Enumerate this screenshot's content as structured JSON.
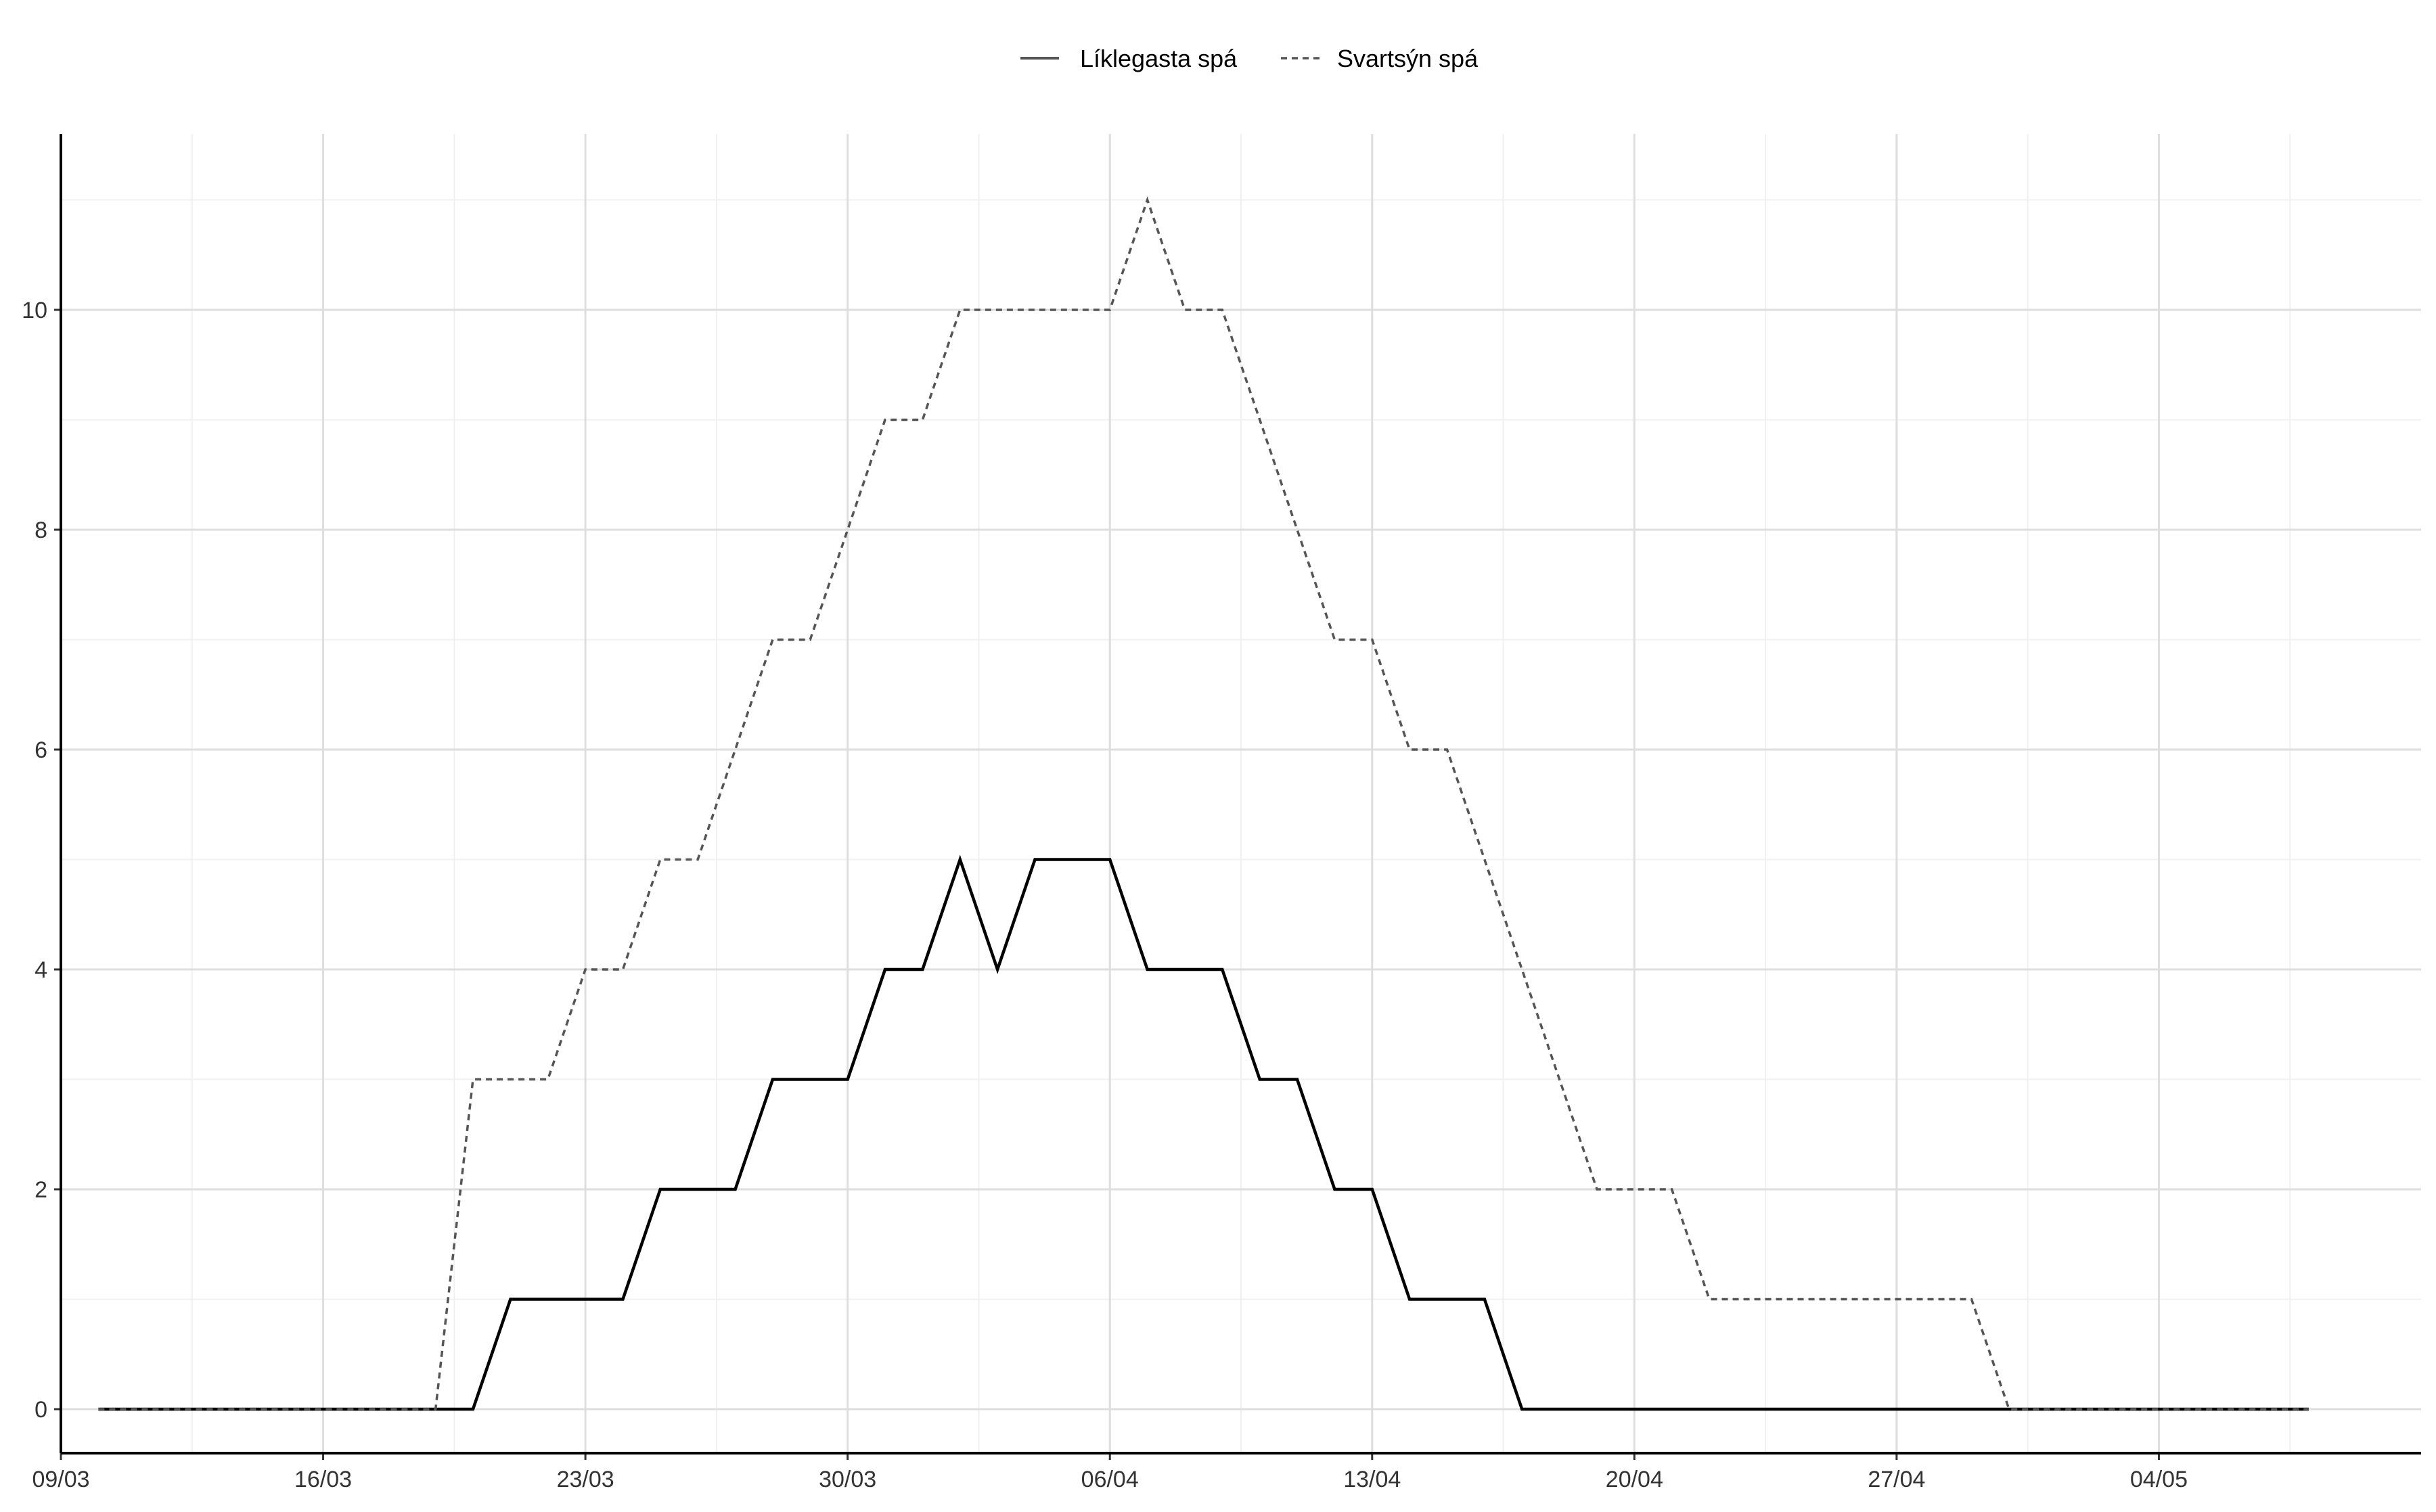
{
  "chart_data": {
    "type": "line",
    "title": "",
    "xlabel": "",
    "ylabel": "",
    "x_start": "2020-03-10",
    "x_end": "2020-05-08",
    "xlim": [
      "2020-03-09",
      "2020-05-11"
    ],
    "ylim": [
      -0.4,
      11.6
    ],
    "x_ticks": [
      "09/03",
      "16/03",
      "23/03",
      "30/03",
      "06/04",
      "13/04",
      "20/04",
      "27/04",
      "04/05"
    ],
    "y_ticks": [
      "0",
      "2",
      "4",
      "6",
      "8",
      "10"
    ],
    "y_tick_values": [
      0,
      2,
      4,
      6,
      8,
      10
    ],
    "grid": true,
    "legend_position": "top",
    "series": [
      {
        "name": "Líklegasta spá",
        "line_style": "solid",
        "color": "#000000",
        "values": [
          0,
          0,
          0,
          0,
          0,
          0,
          0,
          0,
          0,
          0,
          0,
          1,
          1,
          1,
          1,
          2,
          2,
          2,
          3,
          3,
          3,
          4,
          4,
          5,
          4,
          5,
          5,
          5,
          4,
          4,
          4,
          3,
          3,
          2,
          2,
          1,
          1,
          1,
          0,
          0,
          0,
          0,
          0,
          0,
          0,
          0,
          0,
          0,
          0,
          0,
          0,
          0,
          0,
          0,
          0,
          0,
          0,
          0,
          0,
          0
        ]
      },
      {
        "name": "Svartsýn spá",
        "line_style": "dashed",
        "color": "#555555",
        "values": [
          0,
          0,
          0,
          0,
          0,
          0,
          0,
          0,
          0,
          0,
          3,
          3,
          3,
          4,
          4,
          5,
          5,
          6,
          7,
          7,
          8,
          9,
          9,
          10,
          10,
          10,
          10,
          10,
          11,
          10,
          10,
          9,
          8,
          7,
          7,
          6,
          6,
          5,
          4,
          3,
          2,
          2,
          2,
          1,
          1,
          1,
          1,
          1,
          1,
          1,
          1,
          0,
          0,
          0,
          0,
          0,
          0,
          0,
          0,
          0
        ]
      }
    ]
  }
}
